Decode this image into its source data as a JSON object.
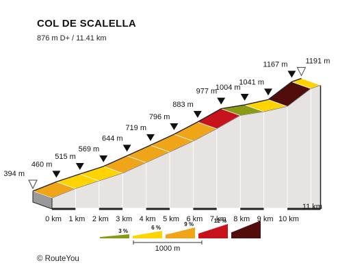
{
  "title": "COL DE SCALELLA",
  "subtitle": "876 m D+ / 11.41 km",
  "credit": "©  RouteYou",
  "chart_data": {
    "type": "area",
    "title": "COL DE SCALELLA",
    "subtitle": "876 m D+ / 11.41 km",
    "x_unit": "km",
    "y_unit": "m",
    "distance_total_km": 11.41,
    "elevation_gain_m": 876,
    "x_ticks": [
      "0 km",
      "1 km",
      "2 km",
      "3 km",
      "4 km",
      "5 km",
      "6 km",
      "7 km",
      "8 km",
      "9 km",
      "10 km",
      "11 km"
    ],
    "points": [
      {
        "km": 0,
        "m": 394,
        "label": "394 m",
        "marker": "start"
      },
      {
        "km": 1,
        "m": 460,
        "label": "460 m",
        "marker": "arrow"
      },
      {
        "km": 2,
        "m": 515,
        "label": "515 m",
        "marker": "arrow"
      },
      {
        "km": 3,
        "m": 569,
        "label": "569 m",
        "marker": "arrow"
      },
      {
        "km": 4,
        "m": 644,
        "label": "644 m",
        "marker": "arrow"
      },
      {
        "km": 5,
        "m": 719,
        "label": "719 m",
        "marker": "arrow"
      },
      {
        "km": 6,
        "m": 796,
        "label": "796 m",
        "marker": "arrow"
      },
      {
        "km": 7,
        "m": 883,
        "label": "883 m",
        "marker": "arrow"
      },
      {
        "km": 8,
        "m": 977,
        "label": "977 m",
        "marker": "arrow"
      },
      {
        "km": 9,
        "m": 1004,
        "label": "1004 m",
        "marker": "arrow"
      },
      {
        "km": 10,
        "m": 1041,
        "label": "1041 m",
        "marker": "arrow"
      },
      {
        "km": 11,
        "m": 1167,
        "label": "1167 m",
        "marker": "arrow"
      },
      {
        "km": 11.41,
        "m": 1191,
        "label": "1191 m",
        "marker": "end"
      }
    ],
    "segment_colors": [
      "#f0a418",
      "#ffd300",
      "#ffd300",
      "#f0a418",
      "#f0a418",
      "#f0a418",
      "#f0a418",
      "#c8131d",
      "#8a9a14",
      "#ffd300",
      "#510c0c",
      "#ffd300"
    ],
    "legend": {
      "items": [
        {
          "label": "3 %",
          "color": "#8a9a14"
        },
        {
          "label": "6 %",
          "color": "#ffd300"
        },
        {
          "label": "9 %",
          "color": "#f0a418"
        },
        {
          "label": "12 %",
          "color": "#c8131d"
        },
        {
          "label": "",
          "color": "#510c0c"
        }
      ],
      "scale_label": "1000 m"
    }
  }
}
